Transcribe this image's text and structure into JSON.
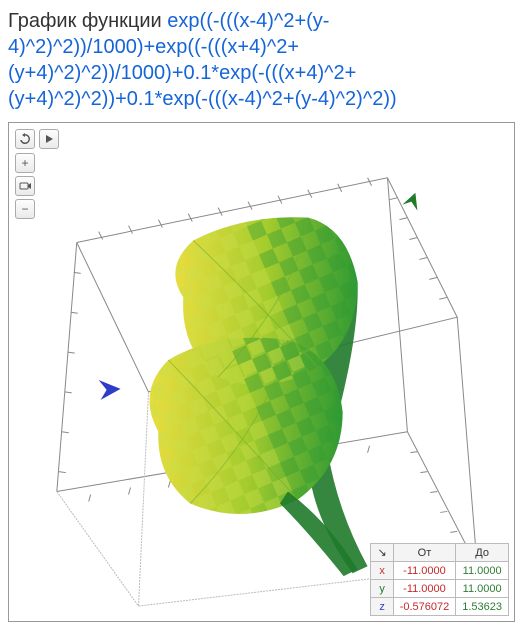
{
  "title": {
    "prefix": "График функции ",
    "formula": "exp((-(((x-4)^2+(y-4)^2)^2))/1000)+exp((-(((x+4)^2+(y+4)^2)^2))/1000)+0.1*exp(-(((x+4)^2+(y+4)^2)^2))+0.1*exp(-(((x-4)^2+(y-4)^2)^2))"
  },
  "chart": {
    "type": "surface3d",
    "colors": {
      "surface_low": "#e8dd3f",
      "surface_mid": "#a5cc2e",
      "surface_high": "#3aa838",
      "surface_dark": "#1f7a2a",
      "wire": "#555555",
      "axis_x_arrow": "#c9302c",
      "axis_y_arrow": "#1f7a2a",
      "axis_z_arrow": "#2e3cc9",
      "background": "#ffffff"
    },
    "axes": {
      "x": {
        "from": -11,
        "to": 11,
        "tick_step": 2
      },
      "y": {
        "from": -11,
        "to": 11,
        "tick_step": 2
      },
      "z": {
        "from": -0.576072,
        "to": 1.53623
      }
    }
  },
  "range_table": {
    "headers": {
      "from": "От",
      "to": "До"
    },
    "rows": [
      {
        "axis": "x",
        "axis_color": "#c9302c",
        "from": "-11.0000",
        "to": "11.0000",
        "from_class": "neg",
        "to_class": "pos"
      },
      {
        "axis": "y",
        "axis_color": "#1f7a2a",
        "from": "-11.0000",
        "to": "11.0000",
        "from_class": "neg",
        "to_class": "pos"
      },
      {
        "axis": "z",
        "axis_color": "#2e3cc9",
        "from": "-0.576072",
        "to": "1.53623",
        "from_class": "neg",
        "to_class": "pos"
      }
    ]
  },
  "toolbar": {
    "reset": "↻",
    "play": "▶",
    "zoom_in": "+",
    "camera": "⬚",
    "zoom_out": "−"
  }
}
